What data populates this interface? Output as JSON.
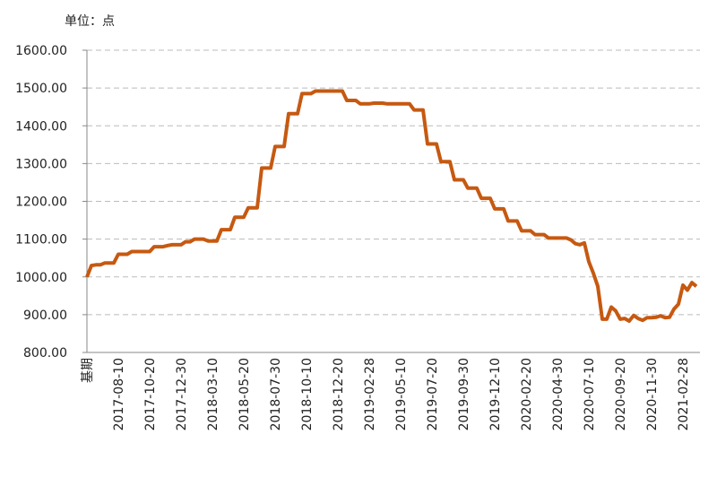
{
  "chart_data": {
    "type": "line",
    "title": "单位：点",
    "categories": [
      "基期",
      null,
      null,
      null,
      null,
      null,
      null,
      "2017-08-10",
      null,
      null,
      null,
      null,
      null,
      null,
      "2017-10-20",
      null,
      null,
      null,
      null,
      null,
      null,
      "2017-12-30",
      null,
      null,
      null,
      null,
      null,
      null,
      "2018-03-10",
      null,
      null,
      null,
      null,
      null,
      null,
      "2018-05-20",
      null,
      null,
      null,
      null,
      null,
      null,
      "2018-07-30",
      null,
      null,
      null,
      null,
      null,
      null,
      "2018-10-10",
      null,
      null,
      null,
      null,
      null,
      null,
      "2018-12-20",
      null,
      null,
      null,
      null,
      null,
      null,
      "2019-02-28",
      null,
      null,
      null,
      null,
      null,
      null,
      "2019-05-10",
      null,
      null,
      null,
      null,
      null,
      null,
      "2019-07-20",
      null,
      null,
      null,
      null,
      null,
      null,
      "2019-09-30",
      null,
      null,
      null,
      null,
      null,
      null,
      "2019-12-10",
      null,
      null,
      null,
      null,
      null,
      null,
      "2020-02-20",
      null,
      null,
      null,
      null,
      null,
      null,
      "2020-04-30",
      null,
      null,
      null,
      null,
      null,
      null,
      "2020-07-10",
      null,
      null,
      null,
      null,
      null,
      null,
      "2020-09-20",
      null,
      null,
      null,
      null,
      null,
      null,
      "2020-11-30",
      null,
      null,
      null,
      null,
      null,
      null,
      "2021-02-28",
      null,
      null,
      null
    ],
    "values": [
      1000,
      1030,
      1032,
      1032,
      1037,
      1037,
      1037,
      1060,
      1060,
      1060,
      1067,
      1067,
      1067,
      1067,
      1067,
      1080,
      1080,
      1080,
      1083,
      1085,
      1085,
      1085,
      1093,
      1093,
      1100,
      1100,
      1100,
      1095,
      1095,
      1095,
      1125,
      1125,
      1125,
      1158,
      1158,
      1158,
      1183,
      1183,
      1183,
      1288,
      1288,
      1288,
      1345,
      1345,
      1345,
      1432,
      1432,
      1432,
      1485,
      1485,
      1485,
      1492,
      1492,
      1492,
      1492,
      1492,
      1492,
      1492,
      1467,
      1467,
      1467,
      1458,
      1458,
      1458,
      1460,
      1460,
      1460,
      1458,
      1458,
      1458,
      1458,
      1458,
      1458,
      1442,
      1442,
      1442,
      1352,
      1352,
      1352,
      1305,
      1305,
      1305,
      1257,
      1257,
      1257,
      1235,
      1235,
      1235,
      1208,
      1208,
      1208,
      1180,
      1180,
      1180,
      1148,
      1148,
      1148,
      1122,
      1122,
      1122,
      1112,
      1112,
      1112,
      1103,
      1103,
      1103,
      1103,
      1103,
      1098,
      1088,
      1085,
      1090,
      1040,
      1010,
      975,
      888,
      888,
      920,
      910,
      888,
      890,
      883,
      898,
      890,
      885,
      892,
      892,
      893,
      897,
      892,
      893,
      915,
      928,
      978,
      965,
      985,
      975
    ],
    "color": "#c65911",
    "ylim": [
      800,
      1600
    ],
    "yticks": [
      {
        "value": 800,
        "label": "800.00"
      },
      {
        "value": 900,
        "label": "900.00"
      },
      {
        "value": 1000,
        "label": "1000.00"
      },
      {
        "value": 1100,
        "label": "1100.00"
      },
      {
        "value": 1200,
        "label": "1200.00"
      },
      {
        "value": 1300,
        "label": "1300.00"
      },
      {
        "value": 1400,
        "label": "1400.00"
      },
      {
        "value": 1500,
        "label": "1500.00"
      },
      {
        "value": 1600,
        "label": "1600.00"
      }
    ],
    "grid": true
  }
}
